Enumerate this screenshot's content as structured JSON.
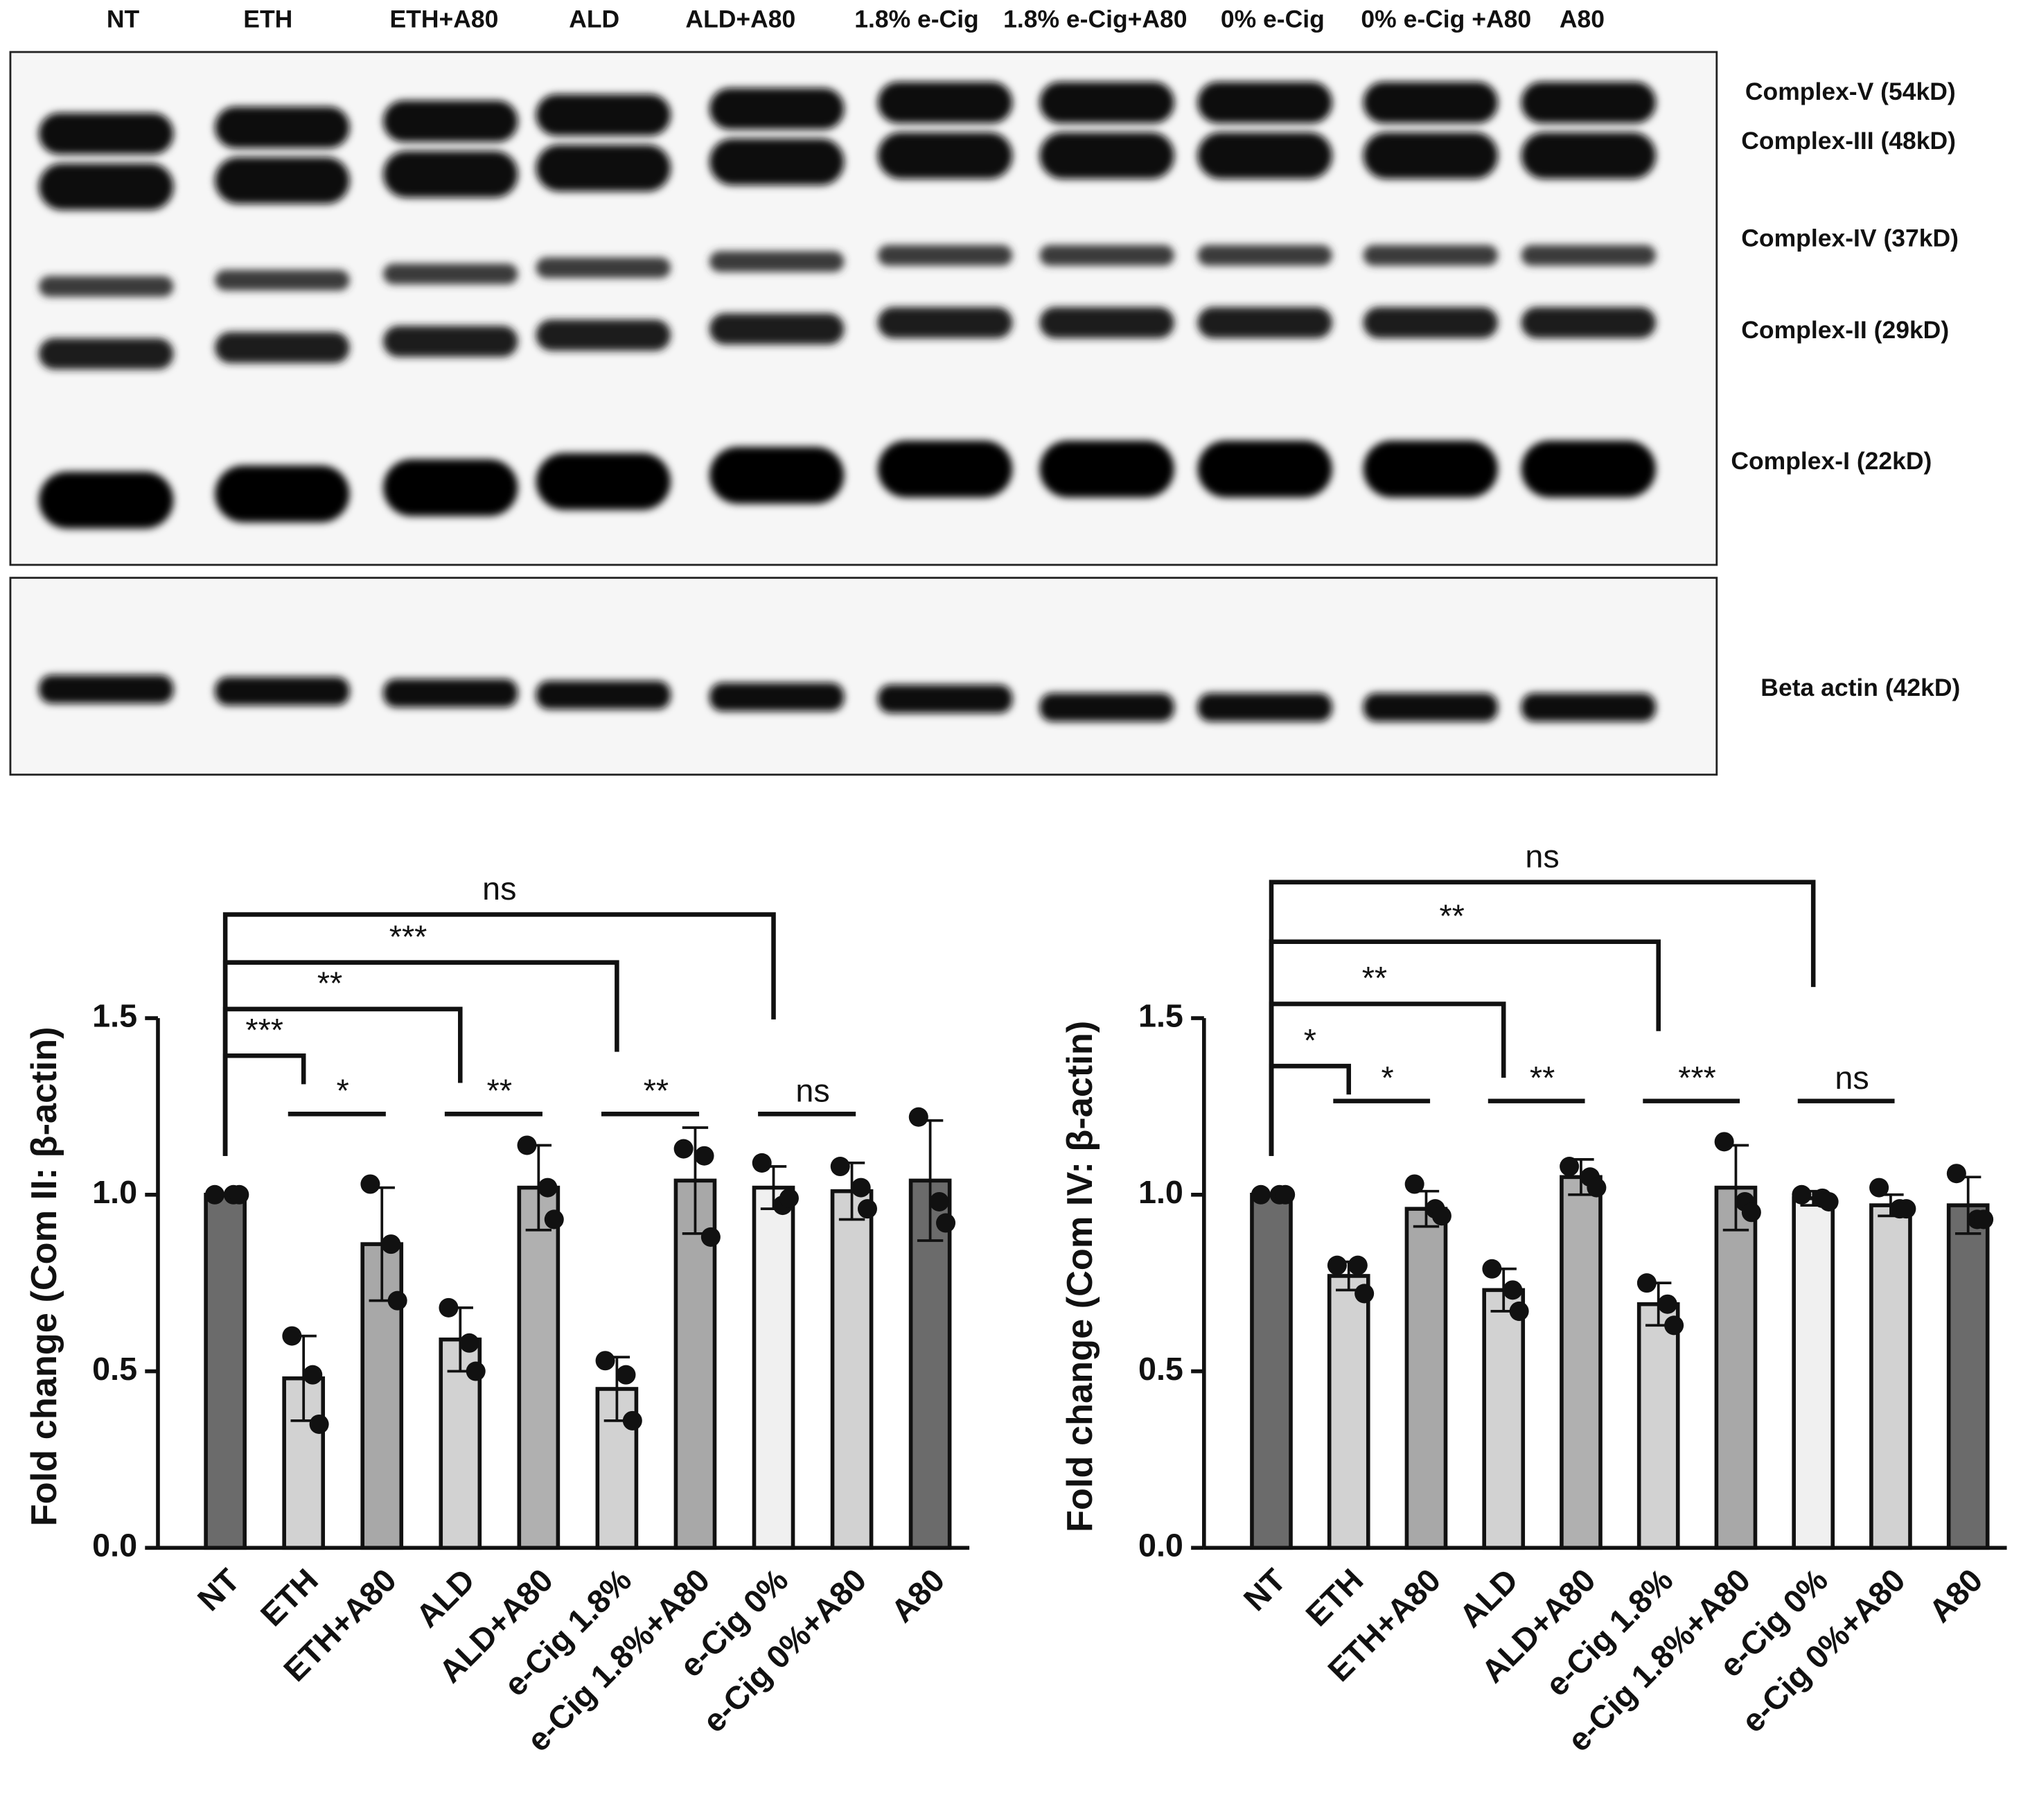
{
  "blot": {
    "lanes": [
      "NT",
      "ETH",
      "ETH+A80",
      "ALD",
      "ALD+A80",
      "1.8% e-Cig",
      "1.8% e-Cig+A80",
      "0% e-Cig",
      "0% e-Cig +A80",
      "A80"
    ],
    "bands": [
      "Complex-V (54kD)",
      "Complex-III (48kD)",
      "Complex-IV (37kD)",
      "Complex-II (29kD)",
      "Complex-I (22kD)"
    ],
    "loading": "Beta actin (42kD)"
  },
  "chart_data": [
    {
      "type": "bar",
      "ylabel": "Fold change (Com II: β-actin)",
      "categories": [
        "NT",
        "ETH",
        "ETH+A80",
        "ALD",
        "ALD+A80",
        "e-Cig 1.8%",
        "e-Cig 1.8%+A80",
        "e-Cig 0%",
        "e-Cig 0%+A80",
        "A80"
      ],
      "values": [
        1.0,
        0.48,
        0.86,
        0.59,
        1.02,
        0.45,
        1.04,
        1.02,
        1.01,
        1.04
      ],
      "errors": [
        0,
        0.12,
        0.16,
        0.09,
        0.12,
        0.09,
        0.15,
        0.06,
        0.08,
        0.17
      ],
      "points": [
        [
          1.0,
          1.0,
          1.0
        ],
        [
          0.6,
          0.49,
          0.35
        ],
        [
          1.03,
          0.86,
          0.7
        ],
        [
          0.68,
          0.58,
          0.5
        ],
        [
          1.14,
          1.02,
          0.93
        ],
        [
          0.53,
          0.49,
          0.36
        ],
        [
          1.13,
          1.11,
          0.88
        ],
        [
          1.09,
          0.97,
          0.99
        ],
        [
          1.08,
          1.02,
          0.96
        ],
        [
          1.22,
          0.98,
          0.92
        ]
      ],
      "colors": [
        "#6b6b6b",
        "#d2d2d2",
        "#a8a8a8",
        "#d2d2d2",
        "#b0b0b0",
        "#d2d2d2",
        "#a8a8a8",
        "#f0f0f0",
        "#d2d2d2",
        "#6b6b6b"
      ],
      "ylim": [
        0,
        1.5
      ],
      "yticks": [
        {
          "value": 0,
          "label": "0.0"
        },
        0.5,
        {
          "value": 1,
          "label": "1.0"
        },
        1.5
      ],
      "comparisons": [
        {
          "text": "***",
          "from": "NT",
          "to": "ETH"
        },
        {
          "text": "**",
          "from": "NT",
          "to": "ALD"
        },
        {
          "text": "***",
          "from": "NT",
          "to": "e-Cig 1.8%"
        },
        {
          "text": "ns",
          "from": "NT",
          "to": "e-Cig 0%"
        }
      ],
      "pairs": [
        {
          "text": "*",
          "from": "ETH",
          "to": "ETH+A80"
        },
        {
          "text": "**",
          "from": "ALD",
          "to": "ALD+A80"
        },
        {
          "text": "**",
          "from": "e-Cig 1.8%",
          "to": "e-Cig 1.8%+A80"
        },
        {
          "text": "ns",
          "from": "e-Cig 0%",
          "to": "e-Cig 0%+A80"
        }
      ]
    },
    {
      "type": "bar",
      "ylabel": "Fold change (Com IV: β-actin)",
      "categories": [
        "NT",
        "ETH",
        "ETH+A80",
        "ALD",
        "ALD+A80",
        "e-Cig 1.8%",
        "e-Cig 1.8%+A80",
        "e-Cig 0%",
        "e-Cig 0%+A80",
        "A80"
      ],
      "values": [
        1.0,
        0.77,
        0.96,
        0.73,
        1.05,
        0.69,
        1.02,
        0.99,
        0.97,
        0.97
      ],
      "errors": [
        0,
        0.04,
        0.05,
        0.06,
        0.05,
        0.06,
        0.12,
        0.02,
        0.03,
        0.08
      ],
      "points": [
        [
          1.0,
          1.0,
          1.0
        ],
        [
          0.8,
          0.8,
          0.72
        ],
        [
          1.03,
          0.96,
          0.94
        ],
        [
          0.79,
          0.73,
          0.67
        ],
        [
          1.08,
          1.05,
          1.02
        ],
        [
          0.75,
          0.69,
          0.63
        ],
        [
          1.15,
          0.98,
          0.95
        ],
        [
          1.0,
          0.99,
          0.98
        ],
        [
          1.02,
          0.96,
          0.96
        ],
        [
          1.06,
          0.93,
          0.93
        ]
      ],
      "colors": [
        "#6b6b6b",
        "#d2d2d2",
        "#a8a8a8",
        "#d2d2d2",
        "#b0b0b0",
        "#d2d2d2",
        "#a8a8a8",
        "#f0f0f0",
        "#d2d2d2",
        "#6b6b6b"
      ],
      "ylim": [
        0,
        1.5
      ],
      "yticks": [
        {
          "value": 0,
          "label": "0.0"
        },
        0.5,
        {
          "value": 1,
          "label": "1.0"
        },
        1.5
      ],
      "comparisons": [
        {
          "text": "*",
          "from": "NT",
          "to": "ETH"
        },
        {
          "text": "**",
          "from": "NT",
          "to": "ALD"
        },
        {
          "text": "**",
          "from": "NT",
          "to": "e-Cig 1.8%"
        },
        {
          "text": "ns",
          "from": "NT",
          "to": "e-Cig 0%"
        }
      ],
      "pairs": [
        {
          "text": "*",
          "from": "ETH",
          "to": "ETH+A80"
        },
        {
          "text": "**",
          "from": "ALD",
          "to": "ALD+A80"
        },
        {
          "text": "***",
          "from": "e-Cig 1.8%",
          "to": "e-Cig 1.8%+A80"
        },
        {
          "text": "ns",
          "from": "e-Cig 0%",
          "to": "e-Cig 0%+A80"
        }
      ]
    }
  ]
}
